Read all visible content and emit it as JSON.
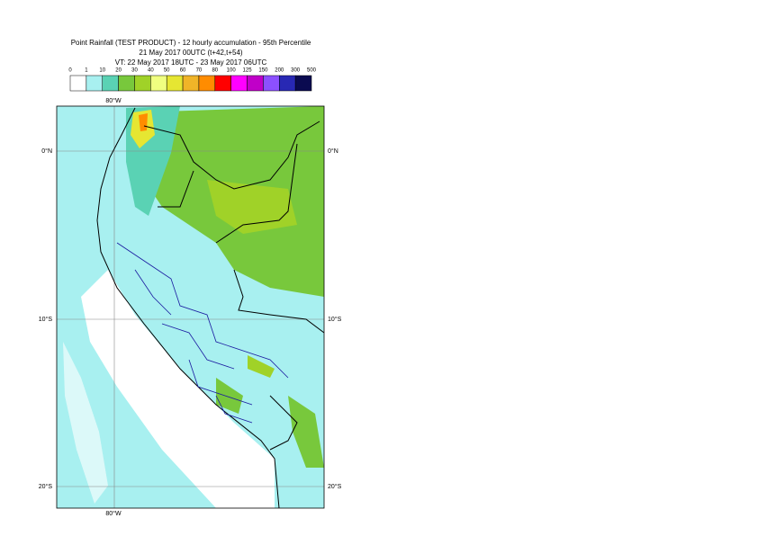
{
  "header": {
    "lines": [
      "Point Rainfall (TEST PRODUCT) - 12 hourly accumulation - 95th Percentile",
      "21 May 2017 00UTC (t+42,t+54)",
      "VT: 22 May 2017 18UTC - 23 May 2017 06UTC"
    ]
  },
  "colorbar": {
    "levels": [
      0,
      1,
      10,
      20,
      30,
      40,
      50,
      60,
      70,
      80,
      100,
      125,
      150,
      200,
      300,
      500
    ],
    "colors": [
      "#ffffff",
      "#a8f0f0",
      "#5ad2b4",
      "#78c83c",
      "#a0d228",
      "#f0ff80",
      "#e6e632",
      "#f0b428",
      "#ff8c00",
      "#ff0000",
      "#ff00ff",
      "#c000c8",
      "#8c50ff",
      "#2828b4",
      "#0a0a50"
    ]
  },
  "map": {
    "lon_labels": [
      "80°W",
      "80°W"
    ],
    "lat_labels_left": [
      "0°N",
      "10°S",
      "20°S"
    ],
    "lat_labels_right": [
      "0°N",
      "10°S",
      "20°S"
    ]
  }
}
